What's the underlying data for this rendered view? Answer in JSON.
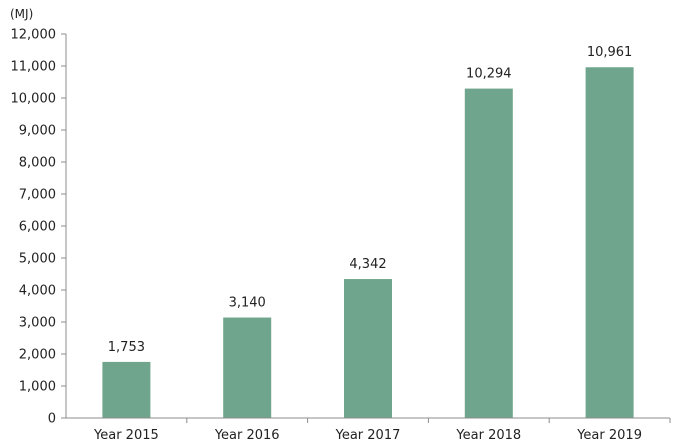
{
  "chart_data": {
    "type": "bar",
    "unit": "(MJ)",
    "categories": [
      "Year 2015",
      "Year 2016",
      "Year 2017",
      "Year 2018",
      "Year 2019"
    ],
    "values": [
      1753,
      3140,
      4342,
      10294,
      10961
    ],
    "value_labels": [
      "1,753",
      "3,140",
      "4,342",
      "10,294",
      "10,961"
    ],
    "ylim": [
      0,
      12000
    ],
    "yticks": [
      0,
      1000,
      2000,
      3000,
      4000,
      5000,
      6000,
      7000,
      8000,
      9000,
      10000,
      11000,
      12000
    ],
    "ytick_labels": [
      "0",
      "1,000",
      "2,000",
      "3,000",
      "4,000",
      "5,000",
      "6,000",
      "7,000",
      "8,000",
      "9,000",
      "10,000",
      "11,000",
      "12,000"
    ],
    "grid": false,
    "legend": "none",
    "bar_color": "#6fa58c",
    "axis_color": "#8c8c8c",
    "text_color": "#222222"
  }
}
